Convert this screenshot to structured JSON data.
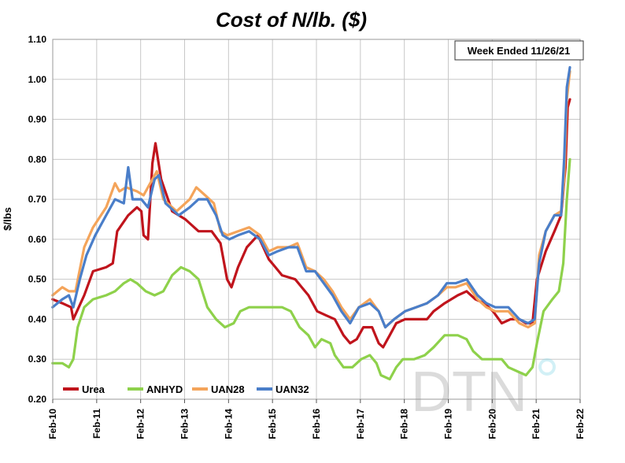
{
  "chart_data": {
    "type": "line",
    "title": "Cost of N/lb. ($)",
    "xlabel": "",
    "ylabel": "$/lbs",
    "ylim": [
      0.2,
      1.1
    ],
    "yticks": [
      "0.20",
      "0.30",
      "0.40",
      "0.50",
      "0.60",
      "0.70",
      "0.80",
      "0.90",
      "1.00",
      "1.10"
    ],
    "xlim": [
      2010.083,
      2022.083
    ],
    "xticks": [
      {
        "label": "Feb-10",
        "x": 2010.083
      },
      {
        "label": "Feb-11",
        "x": 2011.083
      },
      {
        "label": "Feb-12",
        "x": 2012.083
      },
      {
        "label": "Feb-13",
        "x": 2013.083
      },
      {
        "label": "Feb-14",
        "x": 2014.083
      },
      {
        "label": "Feb-15",
        "x": 2015.083
      },
      {
        "label": "Feb-16",
        "x": 2016.083
      },
      {
        "label": "Feb-17",
        "x": 2017.083
      },
      {
        "label": "Feb-18",
        "x": 2018.083
      },
      {
        "label": "Feb-19",
        "x": 2019.083
      },
      {
        "label": "Feb-20",
        "x": 2020.083
      },
      {
        "label": "Feb-21",
        "x": 2021.083
      },
      {
        "label": "Feb-22",
        "x": 2022.083
      }
    ],
    "grid": true,
    "annotation": "Week Ended 11/26/21",
    "watermark": "DTN",
    "legend_position": "bottom-left",
    "series": [
      {
        "name": "Urea",
        "color": "#c0141c",
        "points": [
          [
            2010.08,
            0.45
          ],
          [
            2010.3,
            0.44
          ],
          [
            2010.5,
            0.43
          ],
          [
            2010.55,
            0.4
          ],
          [
            2010.8,
            0.46
          ],
          [
            2011.0,
            0.52
          ],
          [
            2011.3,
            0.53
          ],
          [
            2011.45,
            0.54
          ],
          [
            2011.55,
            0.62
          ],
          [
            2011.8,
            0.66
          ],
          [
            2012.0,
            0.68
          ],
          [
            2012.1,
            0.67
          ],
          [
            2012.15,
            0.61
          ],
          [
            2012.25,
            0.6
          ],
          [
            2012.35,
            0.79
          ],
          [
            2012.42,
            0.84
          ],
          [
            2012.55,
            0.75
          ],
          [
            2012.8,
            0.67
          ],
          [
            2013.1,
            0.65
          ],
          [
            2013.4,
            0.62
          ],
          [
            2013.7,
            0.62
          ],
          [
            2013.9,
            0.59
          ],
          [
            2014.05,
            0.5
          ],
          [
            2014.15,
            0.48
          ],
          [
            2014.3,
            0.53
          ],
          [
            2014.5,
            0.58
          ],
          [
            2014.75,
            0.61
          ],
          [
            2015.0,
            0.55
          ],
          [
            2015.15,
            0.53
          ],
          [
            2015.3,
            0.51
          ],
          [
            2015.6,
            0.5
          ],
          [
            2015.9,
            0.46
          ],
          [
            2016.1,
            0.42
          ],
          [
            2016.3,
            0.41
          ],
          [
            2016.5,
            0.4
          ],
          [
            2016.7,
            0.36
          ],
          [
            2016.85,
            0.34
          ],
          [
            2017.0,
            0.35
          ],
          [
            2017.15,
            0.38
          ],
          [
            2017.35,
            0.38
          ],
          [
            2017.5,
            0.34
          ],
          [
            2017.6,
            0.33
          ],
          [
            2017.75,
            0.36
          ],
          [
            2017.9,
            0.39
          ],
          [
            2018.1,
            0.4
          ],
          [
            2018.4,
            0.4
          ],
          [
            2018.6,
            0.4
          ],
          [
            2018.75,
            0.42
          ],
          [
            2019.0,
            0.44
          ],
          [
            2019.3,
            0.46
          ],
          [
            2019.5,
            0.47
          ],
          [
            2019.7,
            0.45
          ],
          [
            2019.9,
            0.44
          ],
          [
            2020.1,
            0.42
          ],
          [
            2020.3,
            0.39
          ],
          [
            2020.5,
            0.4
          ],
          [
            2020.7,
            0.4
          ],
          [
            2020.85,
            0.39
          ],
          [
            2021.0,
            0.39
          ],
          [
            2021.1,
            0.5
          ],
          [
            2021.3,
            0.57
          ],
          [
            2021.5,
            0.62
          ],
          [
            2021.65,
            0.66
          ],
          [
            2021.75,
            0.78
          ],
          [
            2021.8,
            0.93
          ],
          [
            2021.85,
            0.95
          ]
        ]
      },
      {
        "name": "ANHYD",
        "color": "#8ed14b",
        "points": [
          [
            2010.08,
            0.29
          ],
          [
            2010.3,
            0.29
          ],
          [
            2010.45,
            0.28
          ],
          [
            2010.55,
            0.3
          ],
          [
            2010.65,
            0.38
          ],
          [
            2010.8,
            0.43
          ],
          [
            2011.0,
            0.45
          ],
          [
            2011.3,
            0.46
          ],
          [
            2011.5,
            0.47
          ],
          [
            2011.7,
            0.49
          ],
          [
            2011.85,
            0.5
          ],
          [
            2012.0,
            0.49
          ],
          [
            2012.2,
            0.47
          ],
          [
            2012.4,
            0.46
          ],
          [
            2012.6,
            0.47
          ],
          [
            2012.8,
            0.51
          ],
          [
            2013.0,
            0.53
          ],
          [
            2013.2,
            0.52
          ],
          [
            2013.4,
            0.5
          ],
          [
            2013.6,
            0.43
          ],
          [
            2013.8,
            0.4
          ],
          [
            2014.0,
            0.38
          ],
          [
            2014.2,
            0.39
          ],
          [
            2014.35,
            0.42
          ],
          [
            2014.55,
            0.43
          ],
          [
            2014.8,
            0.43
          ],
          [
            2015.0,
            0.43
          ],
          [
            2015.3,
            0.43
          ],
          [
            2015.5,
            0.42
          ],
          [
            2015.7,
            0.38
          ],
          [
            2015.9,
            0.36
          ],
          [
            2016.05,
            0.33
          ],
          [
            2016.2,
            0.35
          ],
          [
            2016.4,
            0.34
          ],
          [
            2016.5,
            0.31
          ],
          [
            2016.7,
            0.28
          ],
          [
            2016.9,
            0.28
          ],
          [
            2017.1,
            0.3
          ],
          [
            2017.3,
            0.31
          ],
          [
            2017.45,
            0.29
          ],
          [
            2017.55,
            0.26
          ],
          [
            2017.75,
            0.25
          ],
          [
            2017.9,
            0.28
          ],
          [
            2018.05,
            0.3
          ],
          [
            2018.3,
            0.3
          ],
          [
            2018.55,
            0.31
          ],
          [
            2018.75,
            0.33
          ],
          [
            2019.0,
            0.36
          ],
          [
            2019.3,
            0.36
          ],
          [
            2019.5,
            0.35
          ],
          [
            2019.65,
            0.32
          ],
          [
            2019.85,
            0.3
          ],
          [
            2020.1,
            0.3
          ],
          [
            2020.3,
            0.3
          ],
          [
            2020.45,
            0.28
          ],
          [
            2020.65,
            0.27
          ],
          [
            2020.85,
            0.26
          ],
          [
            2021.0,
            0.28
          ],
          [
            2021.1,
            0.34
          ],
          [
            2021.25,
            0.42
          ],
          [
            2021.45,
            0.45
          ],
          [
            2021.6,
            0.47
          ],
          [
            2021.7,
            0.54
          ],
          [
            2021.78,
            0.7
          ],
          [
            2021.85,
            0.8
          ]
        ]
      },
      {
        "name": "UAN28",
        "color": "#f4a45a",
        "points": [
          [
            2010.08,
            0.46
          ],
          [
            2010.3,
            0.48
          ],
          [
            2010.45,
            0.47
          ],
          [
            2010.6,
            0.47
          ],
          [
            2010.8,
            0.58
          ],
          [
            2011.0,
            0.63
          ],
          [
            2011.3,
            0.68
          ],
          [
            2011.5,
            0.74
          ],
          [
            2011.6,
            0.72
          ],
          [
            2011.75,
            0.73
          ],
          [
            2012.0,
            0.72
          ],
          [
            2012.15,
            0.71
          ],
          [
            2012.3,
            0.74
          ],
          [
            2012.45,
            0.77
          ],
          [
            2012.6,
            0.7
          ],
          [
            2012.9,
            0.67
          ],
          [
            2013.2,
            0.7
          ],
          [
            2013.35,
            0.73
          ],
          [
            2013.55,
            0.71
          ],
          [
            2013.75,
            0.69
          ],
          [
            2013.9,
            0.62
          ],
          [
            2014.05,
            0.61
          ],
          [
            2014.3,
            0.62
          ],
          [
            2014.55,
            0.63
          ],
          [
            2014.8,
            0.61
          ],
          [
            2015.0,
            0.57
          ],
          [
            2015.2,
            0.58
          ],
          [
            2015.45,
            0.58
          ],
          [
            2015.65,
            0.59
          ],
          [
            2015.85,
            0.53
          ],
          [
            2016.05,
            0.52
          ],
          [
            2016.25,
            0.5
          ],
          [
            2016.45,
            0.47
          ],
          [
            2016.65,
            0.43
          ],
          [
            2016.85,
            0.4
          ],
          [
            2017.05,
            0.43
          ],
          [
            2017.3,
            0.45
          ],
          [
            2017.5,
            0.42
          ],
          [
            2017.65,
            0.38
          ],
          [
            2017.85,
            0.4
          ],
          [
            2018.1,
            0.42
          ],
          [
            2018.35,
            0.43
          ],
          [
            2018.6,
            0.44
          ],
          [
            2018.85,
            0.46
          ],
          [
            2019.05,
            0.48
          ],
          [
            2019.25,
            0.48
          ],
          [
            2019.5,
            0.49
          ],
          [
            2019.75,
            0.45
          ],
          [
            2019.95,
            0.43
          ],
          [
            2020.15,
            0.42
          ],
          [
            2020.45,
            0.42
          ],
          [
            2020.7,
            0.39
          ],
          [
            2020.9,
            0.38
          ],
          [
            2021.05,
            0.39
          ],
          [
            2021.15,
            0.56
          ],
          [
            2021.3,
            0.62
          ],
          [
            2021.5,
            0.66
          ],
          [
            2021.65,
            0.67
          ],
          [
            2021.72,
            0.75
          ],
          [
            2021.78,
            0.95
          ],
          [
            2021.85,
            1.02
          ]
        ]
      },
      {
        "name": "UAN32",
        "color": "#4a7ec9",
        "points": [
          [
            2010.08,
            0.43
          ],
          [
            2010.3,
            0.45
          ],
          [
            2010.45,
            0.46
          ],
          [
            2010.55,
            0.43
          ],
          [
            2010.7,
            0.5
          ],
          [
            2010.85,
            0.56
          ],
          [
            2011.05,
            0.61
          ],
          [
            2011.3,
            0.66
          ],
          [
            2011.5,
            0.7
          ],
          [
            2011.7,
            0.69
          ],
          [
            2011.8,
            0.78
          ],
          [
            2011.9,
            0.7
          ],
          [
            2012.1,
            0.7
          ],
          [
            2012.25,
            0.68
          ],
          [
            2012.4,
            0.75
          ],
          [
            2012.5,
            0.76
          ],
          [
            2012.65,
            0.69
          ],
          [
            2012.95,
            0.66
          ],
          [
            2013.2,
            0.68
          ],
          [
            2013.4,
            0.7
          ],
          [
            2013.6,
            0.7
          ],
          [
            2013.8,
            0.66
          ],
          [
            2013.95,
            0.61
          ],
          [
            2014.1,
            0.6
          ],
          [
            2014.3,
            0.61
          ],
          [
            2014.55,
            0.62
          ],
          [
            2014.8,
            0.6
          ],
          [
            2015.0,
            0.56
          ],
          [
            2015.2,
            0.57
          ],
          [
            2015.45,
            0.58
          ],
          [
            2015.65,
            0.58
          ],
          [
            2015.85,
            0.52
          ],
          [
            2016.05,
            0.52
          ],
          [
            2016.25,
            0.49
          ],
          [
            2016.45,
            0.46
          ],
          [
            2016.65,
            0.42
          ],
          [
            2016.85,
            0.39
          ],
          [
            2017.05,
            0.43
          ],
          [
            2017.3,
            0.44
          ],
          [
            2017.5,
            0.42
          ],
          [
            2017.65,
            0.38
          ],
          [
            2017.85,
            0.4
          ],
          [
            2018.1,
            0.42
          ],
          [
            2018.35,
            0.43
          ],
          [
            2018.6,
            0.44
          ],
          [
            2018.85,
            0.46
          ],
          [
            2019.05,
            0.49
          ],
          [
            2019.25,
            0.49
          ],
          [
            2019.5,
            0.5
          ],
          [
            2019.75,
            0.46
          ],
          [
            2019.95,
            0.44
          ],
          [
            2020.15,
            0.43
          ],
          [
            2020.45,
            0.43
          ],
          [
            2020.7,
            0.4
          ],
          [
            2020.9,
            0.39
          ],
          [
            2021.05,
            0.4
          ],
          [
            2021.15,
            0.54
          ],
          [
            2021.3,
            0.62
          ],
          [
            2021.5,
            0.66
          ],
          [
            2021.65,
            0.66
          ],
          [
            2021.72,
            0.8
          ],
          [
            2021.78,
            0.98
          ],
          [
            2021.85,
            1.03
          ]
        ]
      }
    ]
  }
}
